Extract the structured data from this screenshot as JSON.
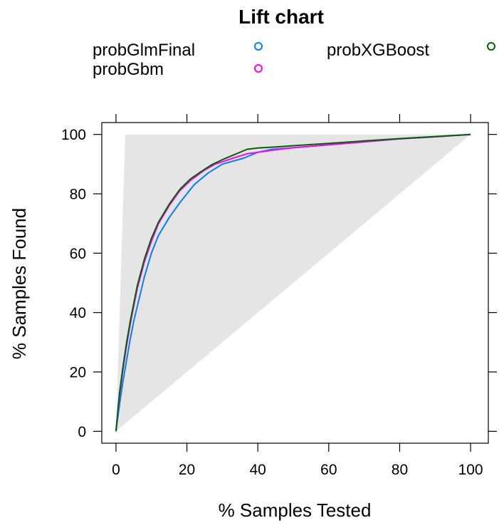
{
  "chart_data": {
    "type": "line",
    "title": "Lift chart",
    "xlabel": "% Samples Tested",
    "ylabel": "% Samples Found",
    "xlim": [
      -4,
      105
    ],
    "ylim": [
      -4,
      104
    ],
    "x_ticks": [
      0,
      20,
      40,
      60,
      80,
      100
    ],
    "y_ticks": [
      0,
      20,
      40,
      60,
      80,
      100
    ],
    "x_tick_labels": [
      "0",
      "20",
      "40",
      "60",
      "80",
      "100"
    ],
    "y_tick_labels": [
      "0",
      "20",
      "40",
      "60",
      "80",
      "100"
    ],
    "grid": false,
    "legend_position": "top",
    "reference_region": [
      [
        0,
        0
      ],
      [
        2.6,
        100
      ],
      [
        100,
        100
      ],
      [
        0,
        0
      ]
    ],
    "series": [
      {
        "name": "probGlmFinal",
        "color": "#0080ff",
        "x": [
          0,
          1,
          2,
          3,
          4,
          5,
          6,
          8,
          10,
          12,
          15,
          18,
          22,
          26,
          30,
          36,
          40,
          44,
          50,
          60,
          70,
          80,
          90,
          100
        ],
        "y": [
          0,
          9,
          17,
          24,
          31,
          37,
          42,
          52,
          60,
          66,
          72,
          77,
          83,
          87,
          90,
          92,
          94,
          95,
          95.5,
          96.5,
          97.5,
          98.5,
          99.2,
          100
        ]
      },
      {
        "name": "probGbm",
        "color": "#ff00ff",
        "x": [
          0,
          1,
          2,
          3,
          4,
          5,
          6,
          8,
          10,
          12,
          15,
          18,
          21,
          25,
          28,
          33,
          37,
          40,
          45,
          50,
          60,
          70,
          80,
          90,
          100
        ],
        "y": [
          0,
          12,
          21,
          29,
          36,
          42,
          48,
          57,
          64,
          70,
          76,
          81,
          84.5,
          88,
          90,
          92,
          93.5,
          94,
          94.8,
          95.5,
          96.5,
          97.5,
          98.5,
          99.2,
          100
        ]
      },
      {
        "name": "probXGBoost",
        "color": "#006400",
        "x": [
          0,
          1,
          2,
          3,
          4,
          5,
          6,
          8,
          10,
          12,
          15,
          18,
          21,
          24,
          27,
          30,
          33,
          37,
          40,
          45,
          50,
          60,
          70,
          80,
          90,
          100
        ],
        "y": [
          0,
          13,
          22,
          30,
          37,
          43,
          49,
          58,
          65,
          70.5,
          76.5,
          81.5,
          85,
          87.5,
          89.8,
          91.5,
          93,
          95,
          95.4,
          95.8,
          96.2,
          97,
          97.8,
          98.6,
          99.3,
          100
        ]
      }
    ]
  }
}
